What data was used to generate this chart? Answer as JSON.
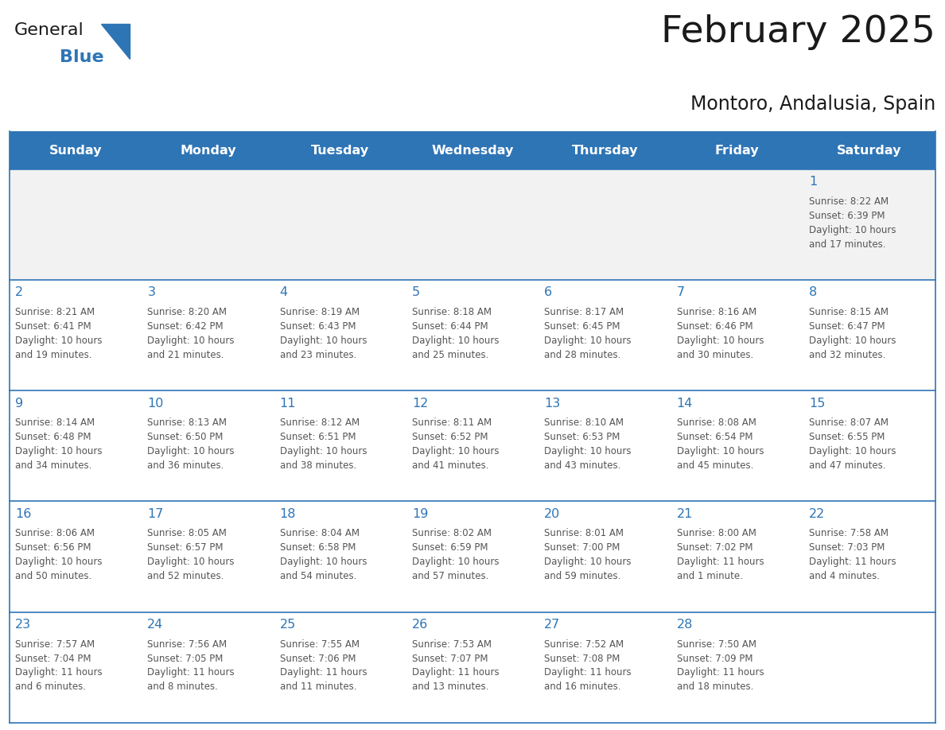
{
  "title": "February 2025",
  "subtitle": "Montoro, Andalusia, Spain",
  "header_bg": "#2E75B6",
  "header_text_color": "#FFFFFF",
  "cell_bg": "#FFFFFF",
  "first_row_bg": "#F2F2F2",
  "cell_border_color": "#2E75B6",
  "day_number_color": "#2E75B6",
  "cell_text_color": "#555555",
  "days_of_week": [
    "Sunday",
    "Monday",
    "Tuesday",
    "Wednesday",
    "Thursday",
    "Friday",
    "Saturday"
  ],
  "calendar_data": [
    [
      null,
      null,
      null,
      null,
      null,
      null,
      {
        "day": 1,
        "sunrise": "8:22 AM",
        "sunset": "6:39 PM",
        "daylight_line1": "Daylight: 10 hours",
        "daylight_line2": "and 17 minutes."
      }
    ],
    [
      {
        "day": 2,
        "sunrise": "8:21 AM",
        "sunset": "6:41 PM",
        "daylight_line1": "Daylight: 10 hours",
        "daylight_line2": "and 19 minutes."
      },
      {
        "day": 3,
        "sunrise": "8:20 AM",
        "sunset": "6:42 PM",
        "daylight_line1": "Daylight: 10 hours",
        "daylight_line2": "and 21 minutes."
      },
      {
        "day": 4,
        "sunrise": "8:19 AM",
        "sunset": "6:43 PM",
        "daylight_line1": "Daylight: 10 hours",
        "daylight_line2": "and 23 minutes."
      },
      {
        "day": 5,
        "sunrise": "8:18 AM",
        "sunset": "6:44 PM",
        "daylight_line1": "Daylight: 10 hours",
        "daylight_line2": "and 25 minutes."
      },
      {
        "day": 6,
        "sunrise": "8:17 AM",
        "sunset": "6:45 PM",
        "daylight_line1": "Daylight: 10 hours",
        "daylight_line2": "and 28 minutes."
      },
      {
        "day": 7,
        "sunrise": "8:16 AM",
        "sunset": "6:46 PM",
        "daylight_line1": "Daylight: 10 hours",
        "daylight_line2": "and 30 minutes."
      },
      {
        "day": 8,
        "sunrise": "8:15 AM",
        "sunset": "6:47 PM",
        "daylight_line1": "Daylight: 10 hours",
        "daylight_line2": "and 32 minutes."
      }
    ],
    [
      {
        "day": 9,
        "sunrise": "8:14 AM",
        "sunset": "6:48 PM",
        "daylight_line1": "Daylight: 10 hours",
        "daylight_line2": "and 34 minutes."
      },
      {
        "day": 10,
        "sunrise": "8:13 AM",
        "sunset": "6:50 PM",
        "daylight_line1": "Daylight: 10 hours",
        "daylight_line2": "and 36 minutes."
      },
      {
        "day": 11,
        "sunrise": "8:12 AM",
        "sunset": "6:51 PM",
        "daylight_line1": "Daylight: 10 hours",
        "daylight_line2": "and 38 minutes."
      },
      {
        "day": 12,
        "sunrise": "8:11 AM",
        "sunset": "6:52 PM",
        "daylight_line1": "Daylight: 10 hours",
        "daylight_line2": "and 41 minutes."
      },
      {
        "day": 13,
        "sunrise": "8:10 AM",
        "sunset": "6:53 PM",
        "daylight_line1": "Daylight: 10 hours",
        "daylight_line2": "and 43 minutes."
      },
      {
        "day": 14,
        "sunrise": "8:08 AM",
        "sunset": "6:54 PM",
        "daylight_line1": "Daylight: 10 hours",
        "daylight_line2": "and 45 minutes."
      },
      {
        "day": 15,
        "sunrise": "8:07 AM",
        "sunset": "6:55 PM",
        "daylight_line1": "Daylight: 10 hours",
        "daylight_line2": "and 47 minutes."
      }
    ],
    [
      {
        "day": 16,
        "sunrise": "8:06 AM",
        "sunset": "6:56 PM",
        "daylight_line1": "Daylight: 10 hours",
        "daylight_line2": "and 50 minutes."
      },
      {
        "day": 17,
        "sunrise": "8:05 AM",
        "sunset": "6:57 PM",
        "daylight_line1": "Daylight: 10 hours",
        "daylight_line2": "and 52 minutes."
      },
      {
        "day": 18,
        "sunrise": "8:04 AM",
        "sunset": "6:58 PM",
        "daylight_line1": "Daylight: 10 hours",
        "daylight_line2": "and 54 minutes."
      },
      {
        "day": 19,
        "sunrise": "8:02 AM",
        "sunset": "6:59 PM",
        "daylight_line1": "Daylight: 10 hours",
        "daylight_line2": "and 57 minutes."
      },
      {
        "day": 20,
        "sunrise": "8:01 AM",
        "sunset": "7:00 PM",
        "daylight_line1": "Daylight: 10 hours",
        "daylight_line2": "and 59 minutes."
      },
      {
        "day": 21,
        "sunrise": "8:00 AM",
        "sunset": "7:02 PM",
        "daylight_line1": "Daylight: 11 hours",
        "daylight_line2": "and 1 minute."
      },
      {
        "day": 22,
        "sunrise": "7:58 AM",
        "sunset": "7:03 PM",
        "daylight_line1": "Daylight: 11 hours",
        "daylight_line2": "and 4 minutes."
      }
    ],
    [
      {
        "day": 23,
        "sunrise": "7:57 AM",
        "sunset": "7:04 PM",
        "daylight_line1": "Daylight: 11 hours",
        "daylight_line2": "and 6 minutes."
      },
      {
        "day": 24,
        "sunrise": "7:56 AM",
        "sunset": "7:05 PM",
        "daylight_line1": "Daylight: 11 hours",
        "daylight_line2": "and 8 minutes."
      },
      {
        "day": 25,
        "sunrise": "7:55 AM",
        "sunset": "7:06 PM",
        "daylight_line1": "Daylight: 11 hours",
        "daylight_line2": "and 11 minutes."
      },
      {
        "day": 26,
        "sunrise": "7:53 AM",
        "sunset": "7:07 PM",
        "daylight_line1": "Daylight: 11 hours",
        "daylight_line2": "and 13 minutes."
      },
      {
        "day": 27,
        "sunrise": "7:52 AM",
        "sunset": "7:08 PM",
        "daylight_line1": "Daylight: 11 hours",
        "daylight_line2": "and 16 minutes."
      },
      {
        "day": 28,
        "sunrise": "7:50 AM",
        "sunset": "7:09 PM",
        "daylight_line1": "Daylight: 11 hours",
        "daylight_line2": "and 18 minutes."
      },
      null
    ]
  ],
  "logo_text_general": "General",
  "logo_text_blue": "Blue",
  "logo_triangle_color": "#2E75B6",
  "fig_width": 11.88,
  "fig_height": 9.18,
  "dpi": 100
}
